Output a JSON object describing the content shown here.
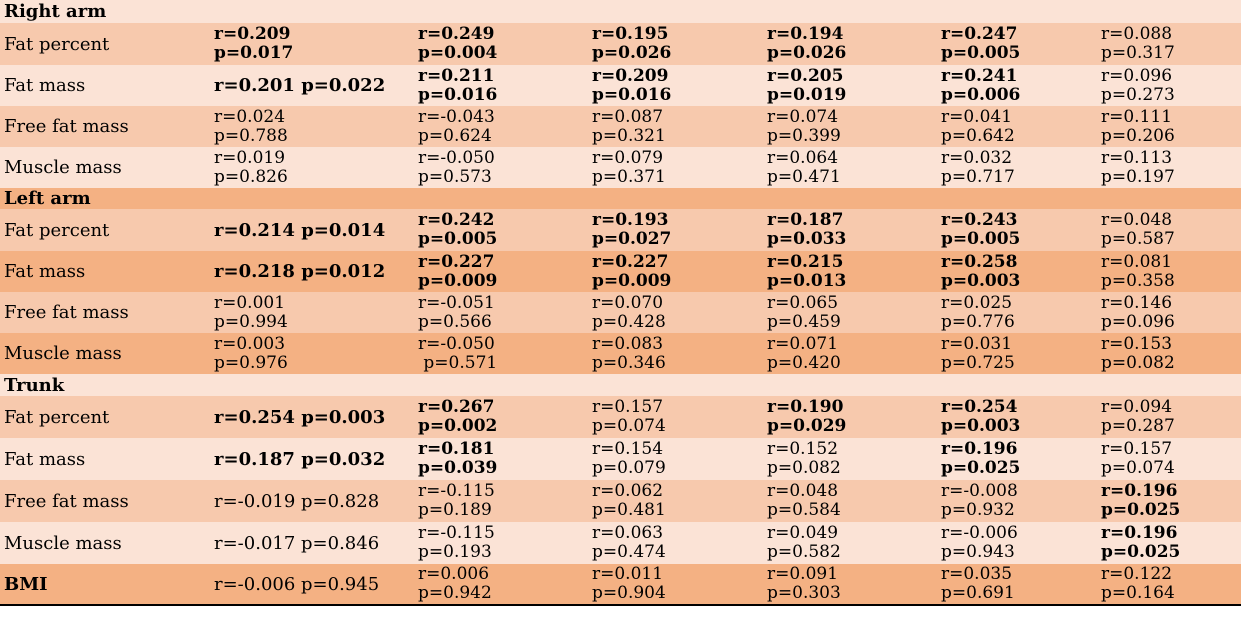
{
  "sections": [
    {
      "title": "Right arm",
      "rows": [
        {
          "label": "Fat percent",
          "cells": [
            {
              "r": "r=0.209",
              "p": "p=0.017",
              "bold": true
            },
            {
              "r": "r=0.249",
              "p": "p=0.004",
              "bold": true
            },
            {
              "r": "r=0.195",
              "p": "p=0.026",
              "bold": true
            },
            {
              "r": "r=0.194",
              "p": "p=0.026",
              "bold": true
            },
            {
              "r": "r=0.247",
              "p": "p=0.005",
              "bold": true
            },
            {
              "r": "r=0.088",
              "p": "p=0.317",
              "bold": false
            }
          ]
        },
        {
          "label": "Fat mass",
          "cells": [
            {
              "text": "r=0.201 p=0.022",
              "bold": true
            },
            {
              "r": "r=0.211",
              "p": "p=0.016",
              "bold": true
            },
            {
              "r": "r=0.209",
              "p": "p=0.016",
              "bold": true
            },
            {
              "r": "r=0.205",
              "p": "p=0.019",
              "bold": true
            },
            {
              "r": "r=0.241",
              "p": "p=0.006",
              "bold": true
            },
            {
              "r": "r=0.096",
              "p": "p=0.273",
              "bold": false
            }
          ]
        },
        {
          "label": "Free fat mass",
          "cells": [
            {
              "r": "r=0.024",
              "p": "p=0.788",
              "bold": false
            },
            {
              "r": "r=-0.043",
              "p": "p=0.624",
              "bold": false
            },
            {
              "r": "r=0.087",
              "p": "p=0.321",
              "bold": false
            },
            {
              "r": "r=0.074",
              "p": "p=0.399",
              "bold": false
            },
            {
              "r": "r=0.041",
              "p": "p=0.642",
              "bold": false
            },
            {
              "r": "r=0.111",
              "p": "p=0.206",
              "bold": false
            }
          ]
        },
        {
          "label": "Muscle mass",
          "cells": [
            {
              "r": "r=0.019",
              "p": "p=0.826",
              "bold": false
            },
            {
              "r": "r=-0.050",
              "p": "p=0.573",
              "bold": false
            },
            {
              "r": "r=0.079",
              "p": "p=0.371",
              "bold": false
            },
            {
              "r": "r=0.064",
              "p": "p=0.471",
              "bold": false
            },
            {
              "r": "r=0.032",
              "p": "p=0.717",
              "bold": false
            },
            {
              "r": "r=0.113",
              "p": "p=0.197",
              "bold": false
            }
          ]
        }
      ]
    },
    {
      "title": "Left arm",
      "rows": [
        {
          "label": "Fat percent",
          "cells": [
            {
              "text": "r=0.214 p=0.014",
              "bold": true
            },
            {
              "r": "r=0.242",
              "p": "p=0.005",
              "bold": true
            },
            {
              "r": "r=0.193",
              "p": "p=0.027",
              "bold": true
            },
            {
              "r": "r=0.187",
              "p": "p=0.033",
              "bold": true
            },
            {
              "r": "r=0.243",
              "p": "p=0.005",
              "bold": true
            },
            {
              "r": "r=0.048",
              "p": "p=0.587",
              "bold": false
            }
          ]
        },
        {
          "label": "Fat mass",
          "cells": [
            {
              "text": "r=0.218 p=0.012",
              "bold": true
            },
            {
              "r": "r=0.227",
              "p": "p=0.009",
              "bold": true
            },
            {
              "r": "r=0.227",
              "p": "p=0.009",
              "bold": true
            },
            {
              "r": "r=0.215",
              "p": "p=0.013",
              "bold": true
            },
            {
              "r": "r=0.258",
              "p": "p=0.003",
              "bold": true
            },
            {
              "r": "r=0.081",
              "p": "p=0.358",
              "bold": false
            }
          ]
        },
        {
          "label": "Free fat mass",
          "cells": [
            {
              "r": "r=0.001",
              "p": "p=0.994",
              "bold": false
            },
            {
              "r": "r=-0.051",
              "p": "p=0.566",
              "bold": false
            },
            {
              "r": "r=0.070",
              "p": "p=0.428",
              "bold": false
            },
            {
              "r": "r=0.065",
              "p": "p=0.459",
              "bold": false
            },
            {
              "r": "r=0.025",
              "p": "p=0.776",
              "bold": false
            },
            {
              "r": "r=0.146",
              "p": "p=0.096",
              "bold": false
            }
          ]
        },
        {
          "label": "Muscle mass",
          "cells": [
            {
              "r": "r=0.003",
              "p": "p=0.976",
              "bold": false
            },
            {
              "r": "r=-0.050",
              "p": " p=0.571",
              "bold": false
            },
            {
              "r": "r=0.083",
              "p": "p=0.346",
              "bold": false
            },
            {
              "r": "r=0.071",
              "p": "p=0.420",
              "bold": false
            },
            {
              "r": "r=0.031",
              "p": "p=0.725",
              "bold": false
            },
            {
              "r": "r=0.153",
              "p": "p=0.082",
              "bold": false
            }
          ]
        }
      ]
    },
    {
      "title": "Trunk",
      "rows": [
        {
          "label": "Fat percent",
          "cells": [
            {
              "text": "r=0.254 p=0.003",
              "bold": true
            },
            {
              "r": "r=0.267",
              "p": "p=0.002",
              "bold": true
            },
            {
              "r": "r=0.157",
              "p": "p=0.074",
              "bold": false
            },
            {
              "r": "r=0.190",
              "p": "p=0.029",
              "bold": true
            },
            {
              "r": "r=0.254",
              "p": "p=0.003",
              "bold": true
            },
            {
              "r": "r=0.094",
              "p": "p=0.287",
              "bold": false
            }
          ]
        },
        {
          "label": "Fat mass",
          "cells": [
            {
              "text": "r=0.187 p=0.032",
              "bold": true
            },
            {
              "r": "r=0.181",
              "p": "p=0.039",
              "bold": true
            },
            {
              "r": "r=0.154",
              "p": "p=0.079",
              "bold": false
            },
            {
              "r": "r=0.152",
              "p": "p=0.082",
              "bold": false
            },
            {
              "r": "r=0.196",
              "p": "p=0.025",
              "bold": true
            },
            {
              "r": "r=0.157",
              "p": "p=0.074",
              "bold": false
            }
          ]
        },
        {
          "label": "Free fat mass",
          "cells": [
            {
              "text": "r=-0.019 p=0.828",
              "bold": false
            },
            {
              "r": "r=-0.115",
              "p": "p=0.189",
              "bold": false
            },
            {
              "r": "r=0.062",
              "p": "p=0.481",
              "bold": false
            },
            {
              "r": "r=0.048",
              "p": "p=0.584",
              "bold": false
            },
            {
              "r": "r=-0.008",
              "p": "p=0.932",
              "bold": false
            },
            {
              "r": "r=0.196",
              "p": "p=0.025",
              "bold": true
            }
          ]
        },
        {
          "label": "Muscle mass",
          "cells": [
            {
              "text": "r=-0.017 p=0.846",
              "bold": false
            },
            {
              "r": "r=-0.115",
              "p": "p=0.193",
              "bold": false
            },
            {
              "r": "r=0.063",
              "p": "p=0.474",
              "bold": false
            },
            {
              "r": "r=0.049",
              "p": "p=0.582",
              "bold": false
            },
            {
              "r": "r=-0.006",
              "p": "p=0.943",
              "bold": false
            },
            {
              "r": "r=0.196",
              "p": "p=0.025",
              "bold": true
            }
          ]
        }
      ]
    },
    {
      "title": "",
      "rows": [
        {
          "label": "BMI",
          "label_bold": true,
          "cells": [
            {
              "text": "r=-0.006 p=0.945",
              "bold": false
            },
            {
              "r": "r=0.006",
              "p": "p=0.942",
              "bold": false
            },
            {
              "r": "r=0.011",
              "p": "p=0.904",
              "bold": false
            },
            {
              "r": "r=0.091",
              "p": "p=0.303",
              "bold": false
            },
            {
              "r": "r=0.035",
              "p": "p=0.691",
              "bold": false
            },
            {
              "r": "r=0.122",
              "p": "p=0.164",
              "bold": false
            }
          ]
        }
      ]
    }
  ],
  "colors": {
    "light": "#fbe3d6",
    "medium": "#f7c9ad",
    "dark": "#f4b183"
  }
}
